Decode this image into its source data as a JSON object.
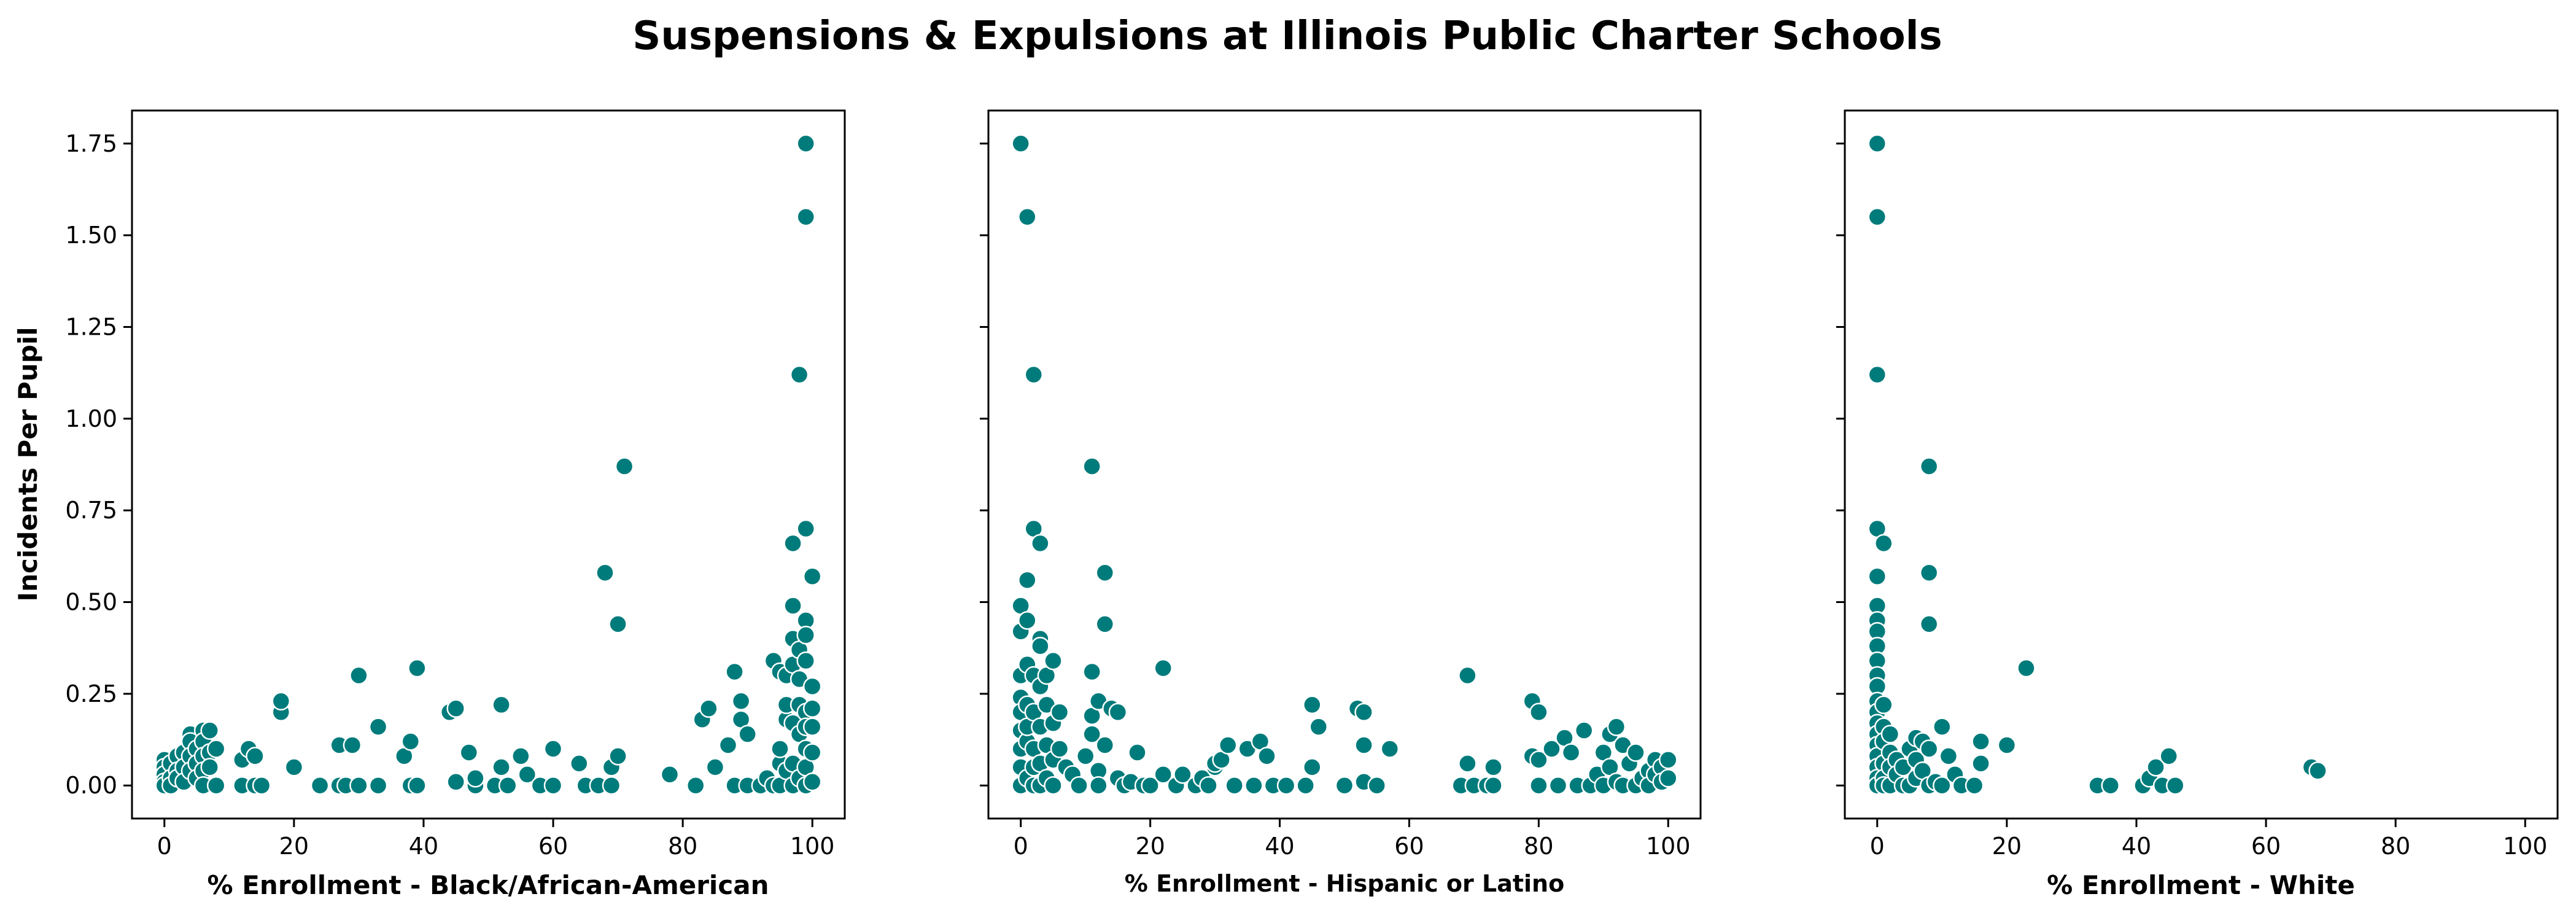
{
  "title": "Suspensions & Expulsions at Illinois Public Charter Schools",
  "colors": {
    "point": "#007b7b"
  },
  "chart_data": [
    {
      "type": "scatter",
      "xlabel": "% Enrollment - Black/African-American",
      "ylabel": "Incidents Per Pupil",
      "xlim": [
        -5,
        105
      ],
      "ylim": [
        -0.09,
        1.84
      ],
      "xticks": [
        0,
        20,
        40,
        60,
        80,
        100
      ],
      "yticks": [
        0.0,
        0.25,
        0.5,
        0.75,
        1.0,
        1.25,
        1.5,
        1.75
      ],
      "grid": false,
      "points": [
        [
          0,
          0.07
        ],
        [
          0,
          0.05
        ],
        [
          0,
          0.03
        ],
        [
          0,
          0.01
        ],
        [
          0,
          0.0
        ],
        [
          1,
          0.06
        ],
        [
          1,
          0.02
        ],
        [
          1,
          0.0
        ],
        [
          2,
          0.08
        ],
        [
          2,
          0.04
        ],
        [
          2,
          0.02
        ],
        [
          3,
          0.09
        ],
        [
          3,
          0.05
        ],
        [
          3,
          0.01
        ],
        [
          4,
          0.14
        ],
        [
          4,
          0.12
        ],
        [
          4,
          0.08
        ],
        [
          4,
          0.04
        ],
        [
          5,
          0.1
        ],
        [
          5,
          0.06
        ],
        [
          5,
          0.02
        ],
        [
          6,
          0.15
        ],
        [
          6,
          0.12
        ],
        [
          6,
          0.08
        ],
        [
          6,
          0.04
        ],
        [
          6,
          0.0
        ],
        [
          7,
          0.15
        ],
        [
          7,
          0.09
        ],
        [
          7,
          0.05
        ],
        [
          8,
          0.1
        ],
        [
          8,
          0.0
        ],
        [
          12,
          0.07
        ],
        [
          12,
          0.0
        ],
        [
          13,
          0.1
        ],
        [
          14,
          0.08
        ],
        [
          14,
          0.0
        ],
        [
          15,
          0.0
        ],
        [
          18,
          0.2
        ],
        [
          18,
          0.23
        ],
        [
          20,
          0.05
        ],
        [
          24,
          0.0
        ],
        [
          27,
          0.11
        ],
        [
          27,
          0.0
        ],
        [
          28,
          0.0
        ],
        [
          29,
          0.11
        ],
        [
          30,
          0.0
        ],
        [
          30,
          0.3
        ],
        [
          33,
          0.16
        ],
        [
          33,
          0.0
        ],
        [
          37,
          0.08
        ],
        [
          38,
          0.12
        ],
        [
          38,
          0.0
        ],
        [
          39,
          0.0
        ],
        [
          39,
          0.32
        ],
        [
          44,
          0.2
        ],
        [
          45,
          0.21
        ],
        [
          45,
          0.01
        ],
        [
          47,
          0.09
        ],
        [
          48,
          0.0
        ],
        [
          48,
          0.02
        ],
        [
          51,
          0.0
        ],
        [
          52,
          0.05
        ],
        [
          52,
          0.22
        ],
        [
          53,
          0.0
        ],
        [
          55,
          0.08
        ],
        [
          56,
          0.03
        ],
        [
          58,
          0.0
        ],
        [
          60,
          0.1
        ],
        [
          60,
          0.0
        ],
        [
          64,
          0.06
        ],
        [
          65,
          0.0
        ],
        [
          67,
          0.0
        ],
        [
          68,
          0.58
        ],
        [
          69,
          0.05
        ],
        [
          69,
          0.0
        ],
        [
          70,
          0.08
        ],
        [
          70,
          0.44
        ],
        [
          71,
          0.87
        ],
        [
          78,
          0.03
        ],
        [
          82,
          0.0
        ],
        [
          83,
          0.18
        ],
        [
          84,
          0.21
        ],
        [
          85,
          0.05
        ],
        [
          87,
          0.11
        ],
        [
          88,
          0.0
        ],
        [
          88,
          0.31
        ],
        [
          89,
          0.23
        ],
        [
          89,
          0.18
        ],
        [
          90,
          0.14
        ],
        [
          90,
          0.0
        ],
        [
          92,
          0.0
        ],
        [
          93,
          0.02
        ],
        [
          94,
          0.34
        ],
        [
          94,
          0.0
        ],
        [
          95,
          0.31
        ],
        [
          95,
          0.0
        ],
        [
          95,
          0.06
        ],
        [
          95,
          0.1
        ],
        [
          96,
          0.18
        ],
        [
          96,
          0.3
        ],
        [
          96,
          0.22
        ],
        [
          96,
          0.04
        ],
        [
          97,
          0.49
        ],
        [
          97,
          0.66
        ],
        [
          97,
          0.4
        ],
        [
          97,
          0.33
        ],
        [
          97,
          0.17
        ],
        [
          97,
          0.06
        ],
        [
          97,
          0.0
        ],
        [
          98,
          0.37
        ],
        [
          98,
          0.29
        ],
        [
          98,
          0.14
        ],
        [
          98,
          0.02
        ],
        [
          98,
          1.12
        ],
        [
          98,
          0.22
        ],
        [
          99,
          0.7
        ],
        [
          99,
          0.45
        ],
        [
          99,
          0.41
        ],
        [
          99,
          0.34
        ],
        [
          99,
          0.2
        ],
        [
          99,
          0.16
        ],
        [
          99,
          0.1
        ],
        [
          99,
          0.05
        ],
        [
          99,
          0.0
        ],
        [
          99,
          1.55
        ],
        [
          99,
          1.75
        ],
        [
          100,
          0.57
        ],
        [
          100,
          0.27
        ],
        [
          100,
          0.21
        ],
        [
          100,
          0.16
        ],
        [
          100,
          0.09
        ],
        [
          100,
          0.01
        ]
      ]
    },
    {
      "type": "scatter",
      "xlabel": "% Enrollment - Hispanic or Latino",
      "ylabel": "",
      "xlim": [
        -5,
        105
      ],
      "ylim": [
        -0.09,
        1.84
      ],
      "xticks": [
        0,
        20,
        40,
        60,
        80,
        100
      ],
      "yticks": [
        0.0,
        0.25,
        0.5,
        0.75,
        1.0,
        1.25,
        1.5,
        1.75
      ],
      "grid": false,
      "points": [
        [
          0,
          1.75
        ],
        [
          0,
          0.49
        ],
        [
          0,
          0.42
        ],
        [
          0,
          0.3
        ],
        [
          0,
          0.24
        ],
        [
          0,
          0.2
        ],
        [
          0,
          0.15
        ],
        [
          0,
          0.1
        ],
        [
          0,
          0.05
        ],
        [
          0,
          0.0
        ],
        [
          1,
          1.55
        ],
        [
          1,
          0.56
        ],
        [
          1,
          0.45
        ],
        [
          1,
          0.22
        ],
        [
          1,
          0.12
        ],
        [
          1,
          0.02
        ],
        [
          1,
          0.16
        ],
        [
          1,
          0.33
        ],
        [
          2,
          1.12
        ],
        [
          2,
          0.7
        ],
        [
          2,
          0.3
        ],
        [
          2,
          0.2
        ],
        [
          2,
          0.1
        ],
        [
          2,
          0.05
        ],
        [
          2,
          0.0
        ],
        [
          3,
          0.66
        ],
        [
          3,
          0.4
        ],
        [
          3,
          0.38
        ],
        [
          3,
          0.27
        ],
        [
          3,
          0.16
        ],
        [
          3,
          0.06
        ],
        [
          3,
          0.0
        ],
        [
          4,
          0.3
        ],
        [
          4,
          0.22
        ],
        [
          4,
          0.11
        ],
        [
          4,
          0.02
        ],
        [
          5,
          0.34
        ],
        [
          5,
          0.17
        ],
        [
          5,
          0.07
        ],
        [
          5,
          0.0
        ],
        [
          6,
          0.2
        ],
        [
          6,
          0.1
        ],
        [
          7,
          0.05
        ],
        [
          8,
          0.03
        ],
        [
          9,
          0.0
        ],
        [
          10,
          0.08
        ],
        [
          11,
          0.87
        ],
        [
          11,
          0.31
        ],
        [
          11,
          0.19
        ],
        [
          11,
          0.14
        ],
        [
          12,
          0.23
        ],
        [
          12,
          0.04
        ],
        [
          12,
          0.0
        ],
        [
          13,
          0.58
        ],
        [
          13,
          0.44
        ],
        [
          13,
          0.11
        ],
        [
          14,
          0.21
        ],
        [
          15,
          0.2
        ],
        [
          15,
          0.02
        ],
        [
          16,
          0.0
        ],
        [
          17,
          0.01
        ],
        [
          18,
          0.09
        ],
        [
          19,
          0.0
        ],
        [
          20,
          0.0
        ],
        [
          22,
          0.32
        ],
        [
          22,
          0.03
        ],
        [
          24,
          0.0
        ],
        [
          25,
          0.03
        ],
        [
          27,
          0.0
        ],
        [
          28,
          0.02
        ],
        [
          29,
          0.0
        ],
        [
          30,
          0.05
        ],
        [
          30,
          0.06
        ],
        [
          31,
          0.07
        ],
        [
          32,
          0.11
        ],
        [
          33,
          0.0
        ],
        [
          35,
          0.1
        ],
        [
          36,
          0.0
        ],
        [
          37,
          0.12
        ],
        [
          38,
          0.08
        ],
        [
          39,
          0.0
        ],
        [
          41,
          0.0
        ],
        [
          44,
          0.0
        ],
        [
          45,
          0.22
        ],
        [
          45,
          0.05
        ],
        [
          46,
          0.16
        ],
        [
          50,
          0.0
        ],
        [
          52,
          0.21
        ],
        [
          53,
          0.2
        ],
        [
          53,
          0.11
        ],
        [
          53,
          0.01
        ],
        [
          55,
          0.0
        ],
        [
          57,
          0.1
        ],
        [
          68,
          0.0
        ],
        [
          69,
          0.3
        ],
        [
          69,
          0.06
        ],
        [
          70,
          0.0
        ],
        [
          72,
          0.0
        ],
        [
          73,
          0.05
        ],
        [
          73,
          0.0
        ],
        [
          79,
          0.23
        ],
        [
          79,
          0.08
        ],
        [
          80,
          0.0
        ],
        [
          80,
          0.07
        ],
        [
          80,
          0.2
        ],
        [
          82,
          0.1
        ],
        [
          83,
          0.0
        ],
        [
          84,
          0.13
        ],
        [
          85,
          0.09
        ],
        [
          86,
          0.0
        ],
        [
          87,
          0.15
        ],
        [
          88,
          0.0
        ],
        [
          89,
          0.03
        ],
        [
          90,
          0.09
        ],
        [
          90,
          0.0
        ],
        [
          91,
          0.14
        ],
        [
          91,
          0.05
        ],
        [
          92,
          0.16
        ],
        [
          92,
          0.01
        ],
        [
          93,
          0.11
        ],
        [
          93,
          0.0
        ],
        [
          94,
          0.06
        ],
        [
          95,
          0.09
        ],
        [
          95,
          0.0
        ],
        [
          96,
          0.02
        ],
        [
          97,
          0.04
        ],
        [
          97,
          0.0
        ],
        [
          98,
          0.07
        ],
        [
          98,
          0.03
        ],
        [
          99,
          0.05
        ],
        [
          99,
          0.01
        ],
        [
          100,
          0.07
        ],
        [
          100,
          0.02
        ]
      ]
    },
    {
      "type": "scatter",
      "xlabel": "% Enrollment - White",
      "ylabel": "",
      "xlim": [
        -5,
        105
      ],
      "ylim": [
        -0.09,
        1.84
      ],
      "xticks": [
        0,
        20,
        40,
        60,
        80,
        100
      ],
      "yticks": [
        0.0,
        0.25,
        0.5,
        0.75,
        1.0,
        1.25,
        1.5,
        1.75
      ],
      "grid": false,
      "points": [
        [
          0,
          1.75
        ],
        [
          0,
          1.55
        ],
        [
          0,
          1.12
        ],
        [
          0,
          0.7
        ],
        [
          0,
          0.57
        ],
        [
          0,
          0.49
        ],
        [
          0,
          0.45
        ],
        [
          0,
          0.42
        ],
        [
          0,
          0.38
        ],
        [
          0,
          0.34
        ],
        [
          0,
          0.3
        ],
        [
          0,
          0.27
        ],
        [
          0,
          0.23
        ],
        [
          0,
          0.2
        ],
        [
          0,
          0.17
        ],
        [
          0,
          0.14
        ],
        [
          0,
          0.11
        ],
        [
          0,
          0.08
        ],
        [
          0,
          0.05
        ],
        [
          0,
          0.02
        ],
        [
          0,
          0.0
        ],
        [
          1,
          0.66
        ],
        [
          1,
          0.22
        ],
        [
          1,
          0.16
        ],
        [
          1,
          0.12
        ],
        [
          1,
          0.06
        ],
        [
          1,
          0.02
        ],
        [
          1,
          0.0
        ],
        [
          2,
          0.14
        ],
        [
          2,
          0.09
        ],
        [
          2,
          0.05
        ],
        [
          2,
          0.0
        ],
        [
          3,
          0.07
        ],
        [
          3,
          0.03
        ],
        [
          4,
          0.0
        ],
        [
          4,
          0.05
        ],
        [
          5,
          0.1
        ],
        [
          5,
          0.0
        ],
        [
          6,
          0.13
        ],
        [
          6,
          0.07
        ],
        [
          6,
          0.02
        ],
        [
          7,
          0.12
        ],
        [
          7,
          0.04
        ],
        [
          8,
          0.87
        ],
        [
          8,
          0.58
        ],
        [
          8,
          0.44
        ],
        [
          8,
          0.1
        ],
        [
          8,
          0.0
        ],
        [
          9,
          0.01
        ],
        [
          10,
          0.16
        ],
        [
          10,
          0.0
        ],
        [
          11,
          0.08
        ],
        [
          12,
          0.03
        ],
        [
          13,
          0.0
        ],
        [
          15,
          0.0
        ],
        [
          16,
          0.12
        ],
        [
          16,
          0.06
        ],
        [
          20,
          0.11
        ],
        [
          23,
          0.32
        ],
        [
          34,
          0.0
        ],
        [
          36,
          0.0
        ],
        [
          41,
          0.0
        ],
        [
          42,
          0.02
        ],
        [
          43,
          0.05
        ],
        [
          44,
          0.0
        ],
        [
          45,
          0.08
        ],
        [
          46,
          0.0
        ],
        [
          67,
          0.05
        ],
        [
          68,
          0.04
        ]
      ]
    }
  ]
}
